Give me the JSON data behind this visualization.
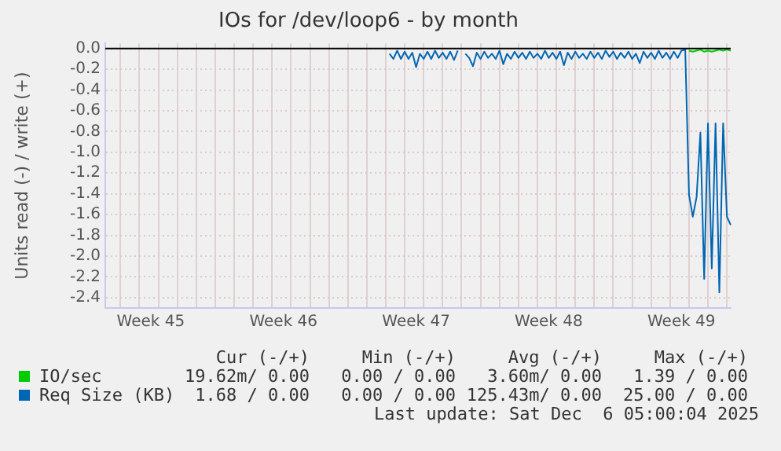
{
  "chart_data": {
    "type": "line",
    "title": "IOs for /dev/loop6 - by month",
    "ylabel": "Units read (-) / write (+)",
    "categories": [
      null,
      null,
      null,
      null,
      null,
      null,
      null,
      null,
      null,
      null,
      null,
      null,
      "Week 45",
      null,
      null,
      null,
      null,
      null,
      null,
      null,
      null,
      null,
      null,
      null,
      null,
      null,
      null,
      null,
      null,
      null,
      null,
      null,
      null,
      null,
      null,
      null,
      null,
      null,
      null,
      null,
      null,
      null,
      null,
      null,
      null,
      null,
      null,
      "Week 46",
      null,
      null,
      null,
      null,
      null,
      null,
      null,
      null,
      null,
      null,
      null,
      null,
      null,
      null,
      null,
      null,
      null,
      null,
      null,
      null,
      null,
      null,
      null,
      null,
      null,
      null,
      null,
      null,
      null,
      null,
      null,
      null,
      null,
      null,
      "Week 47",
      null,
      null,
      null,
      null,
      null,
      null,
      null,
      null,
      null,
      null,
      null,
      null,
      null,
      null,
      null,
      null,
      null,
      null,
      null,
      null,
      null,
      null,
      null,
      null,
      null,
      null,
      null,
      null,
      null,
      null,
      null,
      null,
      null,
      null,
      "Week 48",
      null,
      null,
      null,
      null,
      null,
      null,
      null,
      null,
      null,
      null,
      null,
      null,
      null,
      null,
      null,
      null,
      null,
      null,
      null,
      null,
      null,
      null,
      null,
      null,
      null,
      null,
      null,
      null,
      null,
      null,
      null,
      null,
      null,
      null,
      "Week 49",
      null,
      null,
      null,
      null,
      null,
      null,
      null,
      null,
      null,
      null,
      null,
      null,
      null
    ],
    "ylim": [
      -2.5,
      0.05
    ],
    "yticks": [
      {
        "value": 0,
        "label": "0.0"
      },
      {
        "value": -0.2,
        "label": "-0.2"
      },
      {
        "value": -0.4,
        "label": "-0.4"
      },
      {
        "value": -0.6,
        "label": "-0.6"
      },
      {
        "value": -0.8,
        "label": "-0.8"
      },
      {
        "value": -1,
        "label": "-1.0"
      },
      {
        "value": -1.2,
        "label": "-1.2"
      },
      {
        "value": -1.4,
        "label": "-1.4"
      },
      {
        "value": -1.6,
        "label": "-1.6"
      },
      {
        "value": -1.8,
        "label": "-1.8"
      },
      {
        "value": -2,
        "label": "-2.0"
      },
      {
        "value": -2.2,
        "label": "-2.2"
      },
      {
        "value": -2.4,
        "label": "-2.4"
      }
    ],
    "grid": true,
    "legend": "bottom",
    "marker": "none",
    "line_style": "solid",
    "series": [
      {
        "name": "IO/sec",
        "color": "#00cc00",
        "values": [
          null,
          null,
          null,
          null,
          null,
          null,
          null,
          null,
          null,
          null,
          null,
          null,
          null,
          null,
          null,
          null,
          null,
          null,
          null,
          null,
          null,
          null,
          null,
          null,
          null,
          null,
          null,
          null,
          null,
          null,
          null,
          null,
          null,
          null,
          null,
          null,
          null,
          null,
          null,
          null,
          null,
          null,
          null,
          null,
          null,
          null,
          null,
          null,
          null,
          null,
          null,
          null,
          null,
          null,
          null,
          null,
          null,
          null,
          null,
          null,
          null,
          null,
          null,
          null,
          null,
          null,
          null,
          null,
          null,
          null,
          null,
          null,
          null,
          null,
          null,
          null,
          null,
          null,
          null,
          null,
          null,
          null,
          null,
          null,
          null,
          null,
          null,
          null,
          null,
          null,
          null,
          null,
          null,
          null,
          null,
          null,
          null,
          null,
          null,
          null,
          null,
          null,
          null,
          null,
          null,
          null,
          null,
          null,
          null,
          null,
          null,
          null,
          null,
          null,
          null,
          null,
          null,
          null,
          null,
          null,
          null,
          null,
          null,
          null,
          null,
          null,
          null,
          null,
          null,
          null,
          null,
          null,
          null,
          null,
          null,
          null,
          null,
          null,
          null,
          null,
          null,
          null,
          null,
          null,
          null,
          null,
          null,
          null,
          null,
          null,
          null,
          null,
          null,
          null,
          -0.02,
          -0.03,
          -0.02,
          -0.01,
          -0.03,
          -0.02,
          -0.03,
          -0.02,
          -0.01,
          -0.02,
          -0.01,
          -0.02
        ]
      },
      {
        "name": "Req Size (KB)",
        "color": "#0066b3",
        "values": [
          null,
          null,
          null,
          null,
          null,
          null,
          null,
          null,
          null,
          null,
          null,
          null,
          null,
          null,
          null,
          null,
          null,
          null,
          null,
          null,
          null,
          null,
          null,
          null,
          null,
          null,
          null,
          null,
          null,
          null,
          null,
          null,
          null,
          null,
          null,
          null,
          null,
          null,
          null,
          null,
          null,
          null,
          null,
          null,
          null,
          null,
          null,
          null,
          null,
          null,
          null,
          null,
          null,
          null,
          null,
          null,
          null,
          null,
          null,
          null,
          null,
          null,
          null,
          null,
          null,
          null,
          null,
          null,
          null,
          null,
          null,
          null,
          null,
          null,
          null,
          -0.05,
          -0.1,
          -0.02,
          -0.1,
          -0.03,
          -0.1,
          -0.04,
          -0.18,
          -0.05,
          -0.1,
          -0.03,
          -0.1,
          -0.02,
          -0.09,
          -0.04,
          -0.1,
          -0.03,
          -0.11,
          -0.02,
          null,
          -0.05,
          -0.09,
          -0.17,
          -0.04,
          -0.1,
          -0.03,
          -0.09,
          -0.05,
          -0.1,
          -0.02,
          -0.15,
          -0.05,
          -0.1,
          -0.03,
          -0.09,
          -0.04,
          -0.1,
          -0.03,
          -0.09,
          -0.05,
          -0.1,
          -0.02,
          -0.09,
          -0.04,
          -0.1,
          -0.03,
          -0.16,
          -0.04,
          -0.1,
          -0.03,
          -0.09,
          -0.05,
          -0.1,
          -0.03,
          -0.09,
          -0.04,
          -0.1,
          -0.02,
          -0.08,
          -0.03,
          -0.1,
          -0.04,
          -0.09,
          -0.03,
          -0.1,
          -0.05,
          -0.14,
          -0.03,
          -0.09,
          -0.04,
          -0.1,
          -0.02,
          -0.09,
          -0.04,
          -0.1,
          -0.03,
          -0.09,
          -0.02,
          -0.01,
          -1.41,
          -1.62,
          -1.43,
          -0.81,
          -2.22,
          -0.72,
          -2.12,
          -0.72,
          -2.35,
          -0.72,
          -1.62,
          -1.7
        ]
      }
    ],
    "annotations": [
      "Cur (-/+)",
      "Min (-/+)",
      "Avg (-/+)",
      "Max (-/+)",
      "19.62m/ 0.00",
      "0.00 / 0.00",
      "3.60m/ 0.00",
      "1.39 / 0.00",
      "1.68 / 0.00",
      "0.00 / 0.00",
      "125.43m/ 0.00",
      "25.00 / 0.00",
      "Last update: Sat Dec  6 05:00:04 2025"
    ]
  }
}
